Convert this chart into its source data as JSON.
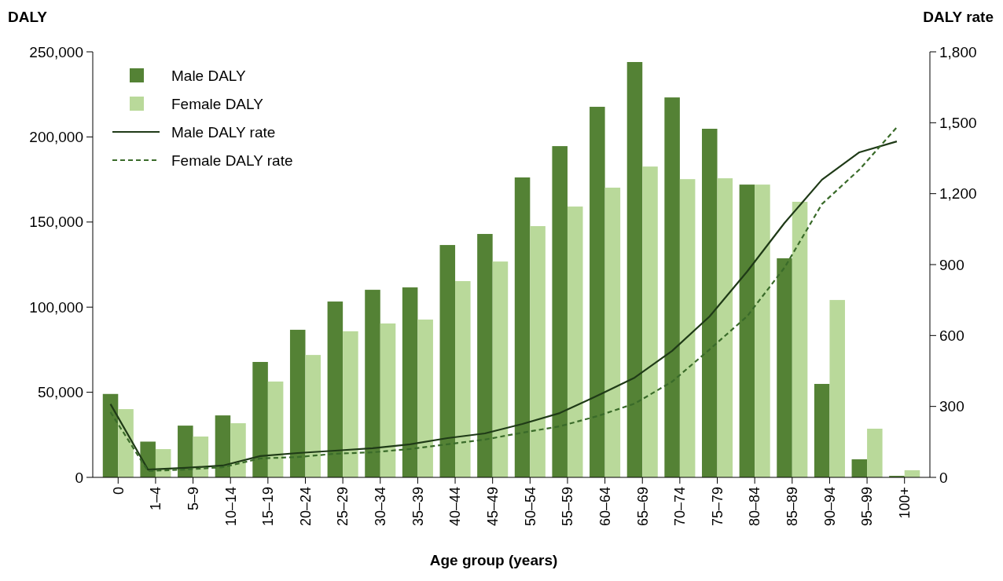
{
  "chart_data": {
    "type": "bar",
    "xlabel": "Age group (years)",
    "ylabel": "DALY",
    "y2label": "DALY rate",
    "categories": [
      "0",
      "1–4",
      "5–9",
      "10–14",
      "15–19",
      "20–24",
      "25–29",
      "30–34",
      "35–39",
      "40–44",
      "45–49",
      "50–54",
      "55–59",
      "60–64",
      "65–69",
      "70–74",
      "75–79",
      "80–84",
      "85–89",
      "90–94",
      "95–99",
      "100+"
    ],
    "series": [
      {
        "name": "Male DALY",
        "color": "#548235",
        "values": [
          49000,
          21000,
          30400,
          36400,
          67800,
          86700,
          103300,
          110200,
          111600,
          136500,
          143000,
          176200,
          194600,
          217700,
          244000,
          223200,
          204800,
          172000,
          128700,
          54900,
          10600,
          900
        ]
      },
      {
        "name": "Female DALY",
        "color": "#b9d99a",
        "values": [
          40100,
          16600,
          24000,
          31800,
          56300,
          71900,
          85800,
          90400,
          92700,
          115300,
          126800,
          147600,
          159100,
          170200,
          182600,
          175200,
          175700,
          172000,
          161900,
          104200,
          28600,
          4200
        ]
      },
      {
        "name": "Male DALY rate",
        "type": "line",
        "axis": "y2",
        "line_style": "solid",
        "color": "#1f3a17",
        "values": [
          310,
          33,
          40,
          50,
          90,
          103,
          113,
          123,
          140,
          166,
          186,
          226,
          272,
          345,
          422,
          535,
          681,
          870,
          1076,
          1259,
          1375,
          1421
        ]
      },
      {
        "name": "Female DALY rate",
        "type": "line",
        "axis": "y2",
        "line_style": "dashed",
        "color": "#3a6b2a",
        "values": [
          276,
          27,
          33,
          43,
          80,
          86,
          100,
          106,
          120,
          140,
          160,
          189,
          216,
          259,
          312,
          405,
          541,
          681,
          887,
          1156,
          1302,
          1481
        ]
      }
    ],
    "ylim": [
      0,
      250000
    ],
    "yticks": [
      {
        "value": 0,
        "label": "0"
      },
      {
        "value": 50000,
        "label": "50,000"
      },
      {
        "value": 100000,
        "label": "100,000"
      },
      {
        "value": 150000,
        "label": "150,000"
      },
      {
        "value": 200000,
        "label": "200,000"
      },
      {
        "value": 250000,
        "label": "250,000"
      }
    ],
    "y2lim": [
      0,
      1800
    ],
    "y2ticks": [
      {
        "value": 0,
        "label": "0"
      },
      {
        "value": 300,
        "label": "300"
      },
      {
        "value": 600,
        "label": "600"
      },
      {
        "value": 900,
        "label": "900"
      },
      {
        "value": 1200,
        "label": "1,200"
      },
      {
        "value": 1500,
        "label": "1,500"
      },
      {
        "value": 1800,
        "label": "1,800"
      }
    ],
    "legend": "top left",
    "grid": false
  }
}
